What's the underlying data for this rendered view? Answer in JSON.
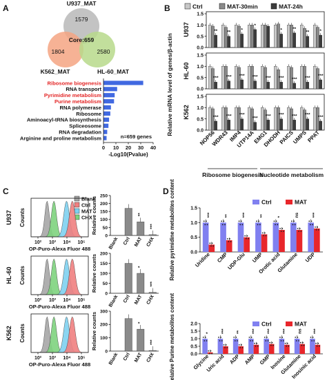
{
  "panels": [
    "A",
    "B",
    "C",
    "D"
  ],
  "venn": {
    "sets": [
      {
        "name": "U937_MAT",
        "unique": "1579",
        "color": "#b8b8b8"
      },
      {
        "name": "K562_MAT",
        "unique": "1804",
        "color": "#f4a582"
      },
      {
        "name": "HL-60_MAT",
        "unique": "2580",
        "color": "#b7d98b"
      }
    ],
    "core_label": "Core:659"
  },
  "pathways": {
    "items": [
      {
        "label": "Ribosome biogenesis",
        "value": 32,
        "highlight": true
      },
      {
        "label": "RNA transport",
        "value": 11,
        "highlight": false
      },
      {
        "label": "Pyrimidine metabolism",
        "value": 9,
        "highlight": true
      },
      {
        "label": "Purine metabolism",
        "value": 8.5,
        "highlight": true
      },
      {
        "label": "RNA polymerase",
        "value": 6,
        "highlight": false
      },
      {
        "label": "Ribosome",
        "value": 5.5,
        "highlight": false
      },
      {
        "label": "Aminoacyl-tRNA biosynthesis",
        "value": 4.5,
        "highlight": false
      },
      {
        "label": "Spliceosome",
        "value": 4,
        "highlight": false
      },
      {
        "label": "RNA degradation",
        "value": 3,
        "highlight": false
      },
      {
        "label": "Arginine and proline metabolism",
        "value": 2.5,
        "highlight": false
      }
    ],
    "ticks": [
      "0",
      "10",
      "20",
      "30",
      "40"
    ],
    "xlabel": "-Log10(Pvalue)",
    "note": "n=659 genes",
    "max": 40,
    "highlight_color": "#e32626",
    "bar_color": "#4169e1"
  },
  "panel_b": {
    "legend": [
      "Ctrl",
      "MAT-30min",
      "MAT-24h"
    ],
    "colors": [
      "#c8c8c8",
      "#8a8a8a",
      "#3c3c3c"
    ],
    "ylabel": "Relative mRNA level of genes/β-actin",
    "genes": [
      "NOP56",
      "WDR43",
      "IMP4",
      "UTP14A",
      "EMG1",
      "DHODH",
      "PAICS",
      "UMPS",
      "PPAT"
    ],
    "groups": [
      "Ribosome biogenesis",
      "Nucleotide metabolism"
    ],
    "rows": [
      {
        "label": "U937",
        "ticks": [
          "1.5",
          "1.0",
          "0.5",
          "0.0"
        ],
        "values": [
          [
            1.0,
            0.95,
            0.55
          ],
          [
            1.0,
            0.9,
            0.5
          ],
          [
            1.0,
            0.95,
            0.6
          ],
          [
            1.0,
            1.0,
            0.8
          ],
          [
            1.0,
            1.0,
            0.95
          ],
          [
            1.0,
            1.05,
            0.6
          ],
          [
            1.0,
            1.0,
            0.65
          ],
          [
            1.0,
            0.85,
            0.5
          ],
          [
            1.0,
            0.9,
            0.55
          ]
        ],
        "stars": [
          "**",
          "**",
          "*",
          "*",
          "",
          "*",
          "**",
          "**",
          "*"
        ]
      },
      {
        "label": "HL-60",
        "ticks": [
          "1.5",
          "1.0",
          "0.5",
          "0.0"
        ],
        "values": [
          [
            1.0,
            0.9,
            0.3
          ],
          [
            1.0,
            1.0,
            0.35
          ],
          [
            1.0,
            0.95,
            0.4
          ],
          [
            1.0,
            1.0,
            0.35
          ],
          [
            1.0,
            0.95,
            0.3
          ],
          [
            1.0,
            0.85,
            0.3
          ],
          [
            1.0,
            0.95,
            0.25
          ],
          [
            1.0,
            1.0,
            0.3
          ],
          [
            1.0,
            0.9,
            0.4
          ]
        ],
        "stars": [
          "***",
          "***",
          "***",
          "***",
          "***",
          "***",
          "***",
          "***",
          "***"
        ]
      },
      {
        "label": "K562",
        "ticks": [
          "1.5",
          "1.0",
          "0.5",
          "0.0"
        ],
        "values": [
          [
            1.0,
            0.95,
            0.4
          ],
          [
            1.0,
            1.0,
            0.45
          ],
          [
            1.0,
            1.0,
            0.5
          ],
          [
            1.0,
            0.95,
            0.35
          ],
          [
            1.0,
            0.9,
            0.45
          ],
          [
            1.0,
            1.0,
            0.5
          ],
          [
            1.0,
            0.95,
            0.45
          ],
          [
            1.0,
            0.9,
            0.5
          ],
          [
            1.0,
            1.0,
            0.4
          ]
        ],
        "stars": [
          "***",
          "***",
          "***",
          "***",
          "***",
          "***",
          "***",
          "***",
          "***"
        ]
      }
    ]
  },
  "panel_c": {
    "legend": [
      {
        "label": "Blank",
        "color": "#a6a6a6"
      },
      {
        "label": "Ctrl",
        "color": "#f08080"
      },
      {
        "label": "MAT",
        "color": "#7ed0f0"
      },
      {
        "label": "CHX",
        "color": "#7ed37e"
      }
    ],
    "hist_ylabel": "Counts",
    "hist_xlabel": "OP-Puro-Alexa Fluor 488",
    "hist_ticks": [
      "10²",
      "10³",
      "10⁴",
      "10⁵"
    ],
    "bar_ylabel": "Relative counts",
    "bar_categories": [
      "Blank",
      "Ctrl",
      "MAT",
      "CHX"
    ],
    "rows": [
      {
        "label": "U937",
        "ticks": [
          "250",
          "200",
          "150",
          "100",
          "50",
          "0"
        ],
        "max": 250,
        "values": [
          0,
          170,
          85,
          5
        ],
        "stars": [
          "",
          "",
          "**",
          "***"
        ]
      },
      {
        "label": "HL-60",
        "ticks": [
          "200",
          "150",
          "100",
          "50",
          "0"
        ],
        "max": 200,
        "values": [
          0,
          150,
          100,
          5
        ],
        "stars": [
          "",
          "",
          "*",
          "***"
        ]
      },
      {
        "label": "K562",
        "ticks": [
          "300",
          "200",
          "100",
          "0"
        ],
        "max": 300,
        "values": [
          0,
          245,
          165,
          5
        ],
        "stars": [
          "",
          "",
          "*",
          "***"
        ]
      }
    ]
  },
  "panel_d": {
    "legend": [
      "Ctrl",
      "MAT"
    ],
    "colors": [
      "#8080f0",
      "#e8262b"
    ],
    "top": {
      "ylabel": "Relative pyrimidine metabolites content",
      "ticks": [
        "1.5",
        "1.0",
        "0.5",
        "0.0"
      ],
      "max": 1.5,
      "categories": [
        "Uridine",
        "CMP",
        "UDP-Glu",
        "UMP",
        "Orotic acid",
        "Glutamine",
        "UDP"
      ],
      "ctrl": [
        1.0,
        1.0,
        1.0,
        1.0,
        1.0,
        1.0,
        1.0
      ],
      "mat": [
        0.25,
        0.4,
        0.5,
        0.6,
        0.75,
        0.75,
        0.8
      ],
      "stars": [
        "***",
        "**",
        "***",
        "**",
        "*",
        "ns",
        "***"
      ]
    },
    "bottom": {
      "ylabel": "Relative Purine metabolites content",
      "ticks": [
        "2.0",
        "1.5",
        "1.0",
        "0.5",
        "0.0"
      ],
      "max": 2.0,
      "categories": [
        "Glycine",
        "Uric acid",
        "ADP",
        "AMP",
        "GMP",
        "Inosine",
        "Glutamine",
        "Inosinic acid"
      ],
      "ctrl": [
        1.0,
        1.0,
        1.0,
        1.0,
        1.0,
        1.0,
        1.0,
        1.0
      ],
      "mat": [
        0.1,
        0.5,
        0.5,
        0.6,
        0.65,
        0.6,
        0.65,
        0.6
      ],
      "stars": [
        "*",
        "***",
        "**",
        "***",
        "***",
        "***",
        "ns",
        "***"
      ]
    }
  }
}
